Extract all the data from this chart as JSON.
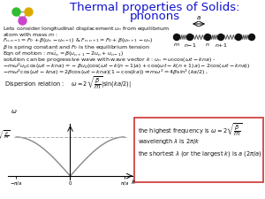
{
  "title_line1": "Thermal properties of Solids:",
  "title_line2": "phonons",
  "title_color": "#1111cc",
  "bg_color": "#ffffff",
  "body_lines": [
    "Lets consider longitudinal displacement $u_n$ from equilibrium",
    "atom with mass $m$ :",
    "$F_{n,n-1} = F_0 + \\beta(u_n - u_{n-1})$ & $F_{n,n+1} = F_0 + \\beta(u_{n+1} - u_n)$",
    "$\\beta$ is spring constant and $F_0$ is the equilibrium tension",
    "Eqn of motion : $m\\ddot{u}_n = \\beta(u_{n+1} - 2u_n + u_{n-1})$",
    "solution can be progressive wave with wave vector $k$ : $u_n = u_0\\cos(\\omega t - kna)$ -",
    "$- m\\omega^2 u_0\\cos(\\omega t - kna) = -\\beta u_0(\\cos(\\omega t - k(n-1)a) + \\cos(\\omega t - k(n+1)a) - 2\\cos(\\omega t - kna))$",
    "$- m\\omega^2\\cos(\\omega t - kna) = 2\\beta\\cos(\\omega t - kna)(1 - \\cos(ka)) \\Rightarrow m\\omega^2 = 4\\beta\\sin^2(ka/2)$ ,"
  ],
  "dispersion_label": "Dispersion relation :    $\\omega = 2\\sqrt{\\dfrac{\\beta}{m}}|\\sin(ka/2)|$",
  "box_line1": "the highest frequency is $\\omega = 2\\sqrt{\\dfrac{\\beta}{m}}$",
  "box_line2": "wavelength $\\lambda$ is $2\\pi/k$",
  "box_line3": "the shortest $\\lambda$ (or the largest $k$) is $a$ $(2\\pi/a)$",
  "green_color": "#33bb33",
  "orange_color": "#ddaa00",
  "purple_color": "#cc44cc",
  "atom_color": "#111111",
  "spring_color": "#555555",
  "plot_curve_color": "#888888",
  "plot_dash_color": "#aaaaaa",
  "box_edge_color": "#cc3333"
}
